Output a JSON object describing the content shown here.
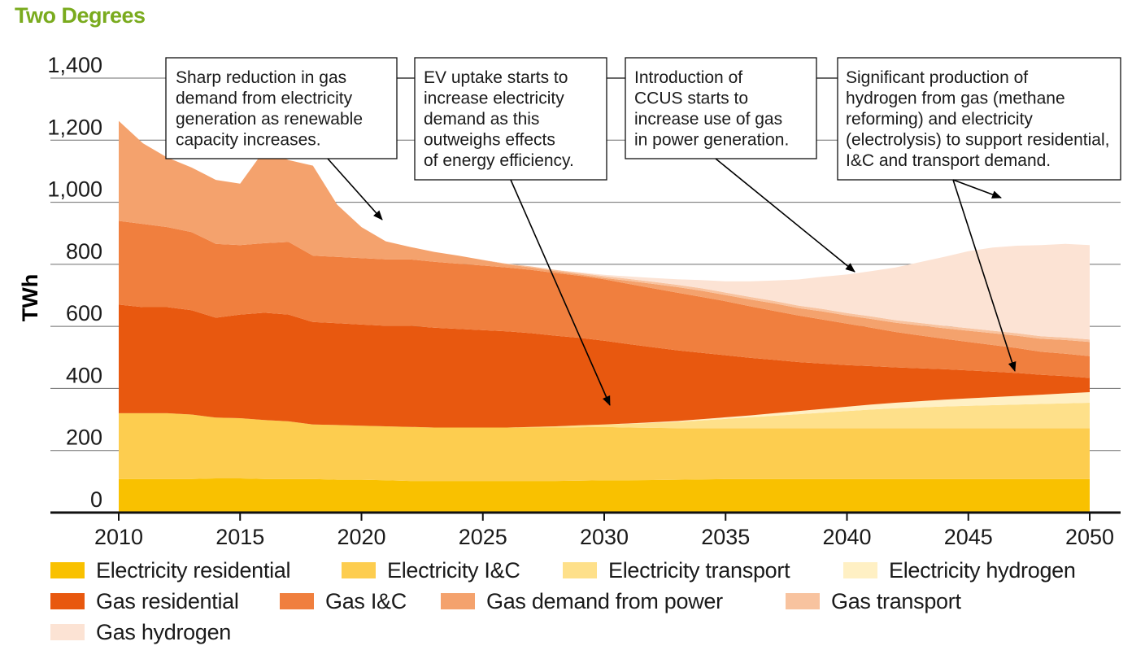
{
  "title": "Two Degrees",
  "chart_data": {
    "type": "area",
    "stacked": true,
    "ylabel": "TWh",
    "xlabel": "",
    "ylim": [
      0,
      1400
    ],
    "xlim": [
      2010,
      2050
    ],
    "yticks": [
      "0",
      "200",
      "400",
      "600",
      "800",
      "1,000",
      "1,200",
      "1,400"
    ],
    "xticks": [
      "2010",
      "2015",
      "2020",
      "2025",
      "2030",
      "2035",
      "2040",
      "2045",
      "2050"
    ],
    "grid": "horizontal",
    "legend_position": "bottom",
    "x": [
      2010,
      2011,
      2012,
      2013,
      2014,
      2015,
      2016,
      2017,
      2018,
      2019,
      2020,
      2021,
      2022,
      2023,
      2024,
      2025,
      2026,
      2027,
      2028,
      2029,
      2030,
      2031,
      2032,
      2033,
      2034,
      2035,
      2036,
      2037,
      2038,
      2039,
      2040,
      2041,
      2042,
      2043,
      2044,
      2045,
      2046,
      2047,
      2048,
      2049,
      2050
    ],
    "series": [
      {
        "name": "Electricity residential",
        "color": "#f9c100",
        "values": [
          108,
          108,
          108,
          108,
          110,
          110,
          108,
          108,
          108,
          106,
          106,
          104,
          102,
          102,
          102,
          102,
          102,
          102,
          102,
          103,
          104,
          104,
          105,
          106,
          107,
          108,
          108,
          108,
          108,
          108,
          108,
          108,
          108,
          108,
          108,
          108,
          108,
          108,
          108,
          108,
          108
        ]
      },
      {
        "name": "Electricity I&C",
        "color": "#fdcd4f",
        "values": [
          212,
          212,
          212,
          208,
          196,
          194,
          190,
          186,
          176,
          176,
          174,
          174,
          174,
          172,
          172,
          172,
          172,
          172,
          172,
          172,
          172,
          170,
          168,
          166,
          165,
          164,
          164,
          164,
          164,
          164,
          164,
          164,
          164,
          164,
          164,
          164,
          164,
          164,
          164,
          164,
          164
        ]
      },
      {
        "name": "Electricity transport",
        "color": "#fee08a",
        "values": [
          0,
          0,
          0,
          0,
          0,
          0,
          0,
          0,
          0,
          0,
          0,
          0,
          0,
          0,
          0,
          0,
          0,
          2,
          4,
          6,
          8,
          12,
          16,
          20,
          25,
          30,
          35,
          40,
          45,
          50,
          55,
          60,
          64,
          67,
          70,
          72,
          74,
          76,
          78,
          80,
          82
        ]
      },
      {
        "name": "Electricity hydrogen",
        "color": "#fff0c4",
        "values": [
          0,
          0,
          0,
          0,
          0,
          0,
          0,
          0,
          0,
          0,
          0,
          0,
          0,
          0,
          0,
          0,
          0,
          0,
          0,
          0,
          0,
          1,
          2,
          3,
          4,
          5,
          6,
          8,
          10,
          12,
          14,
          16,
          18,
          20,
          22,
          24,
          26,
          28,
          30,
          32,
          34
        ]
      },
      {
        "name": "Gas residential",
        "color": "#e8580f",
        "values": [
          350,
          342,
          342,
          336,
          322,
          334,
          346,
          344,
          330,
          328,
          326,
          324,
          326,
          322,
          318,
          314,
          310,
          302,
          292,
          282,
          270,
          256,
          242,
          228,
          214,
          200,
          186,
          172,
          158,
          146,
          134,
          124,
          114,
          106,
          98,
          90,
          82,
          74,
          64,
          56,
          46
        ]
      },
      {
        "name": "Gas I&C",
        "color": "#f07f3e",
        "values": [
          270,
          268,
          258,
          252,
          238,
          224,
          224,
          234,
          214,
          214,
          214,
          214,
          214,
          212,
          210,
          208,
          206,
          204,
          202,
          200,
          198,
          194,
          190,
          186,
          180,
          174,
          166,
          158,
          150,
          142,
          134,
          124,
          114,
          106,
          98,
          92,
          86,
          80,
          74,
          72,
          70
        ]
      },
      {
        "name": "Gas demand from power",
        "color": "#f4a26d",
        "values": [
          322,
          260,
          224,
          208,
          206,
          198,
          300,
          264,
          290,
          168,
          100,
          58,
          40,
          32,
          26,
          18,
          10,
          8,
          6,
          4,
          4,
          10,
          14,
          18,
          20,
          20,
          22,
          24,
          24,
          26,
          26,
          28,
          30,
          32,
          34,
          36,
          38,
          40,
          42,
          44,
          46
        ]
      },
      {
        "name": "Gas transport",
        "color": "#f8c39f",
        "values": [
          0,
          0,
          0,
          0,
          0,
          0,
          0,
          0,
          0,
          0,
          0,
          0,
          0,
          0,
          0,
          0,
          2,
          3,
          4,
          5,
          6,
          6,
          7,
          7,
          8,
          8,
          8,
          8,
          8,
          8,
          8,
          8,
          8,
          8,
          8,
          8,
          8,
          8,
          8,
          8,
          8
        ]
      },
      {
        "name": "Gas hydrogen",
        "color": "#fce3d4",
        "values": [
          0,
          0,
          0,
          0,
          0,
          0,
          0,
          0,
          0,
          0,
          0,
          0,
          0,
          0,
          0,
          0,
          0,
          0,
          0,
          2,
          4,
          8,
          12,
          18,
          26,
          36,
          50,
          66,
          84,
          104,
          124,
          146,
          170,
          196,
          222,
          248,
          268,
          282,
          294,
          302,
          304
        ]
      }
    ],
    "annotations": [
      {
        "lines": [
          "Sharp reduction in gas",
          "demand from electricity",
          "generation as renewable",
          "capacity increases."
        ]
      },
      {
        "lines": [
          "EV uptake starts to",
          "increase electricity",
          "demand as this",
          "outweighs effects",
          "of energy efficiency."
        ]
      },
      {
        "lines": [
          "Introduction of",
          "CCUS starts to",
          "increase use of gas",
          "in power generation."
        ]
      },
      {
        "lines": [
          "Significant production of",
          "hydrogen from gas (methane",
          "reforming) and electricity",
          "(electrolysis) to support residential,",
          "I&C and transport demand."
        ]
      }
    ]
  }
}
